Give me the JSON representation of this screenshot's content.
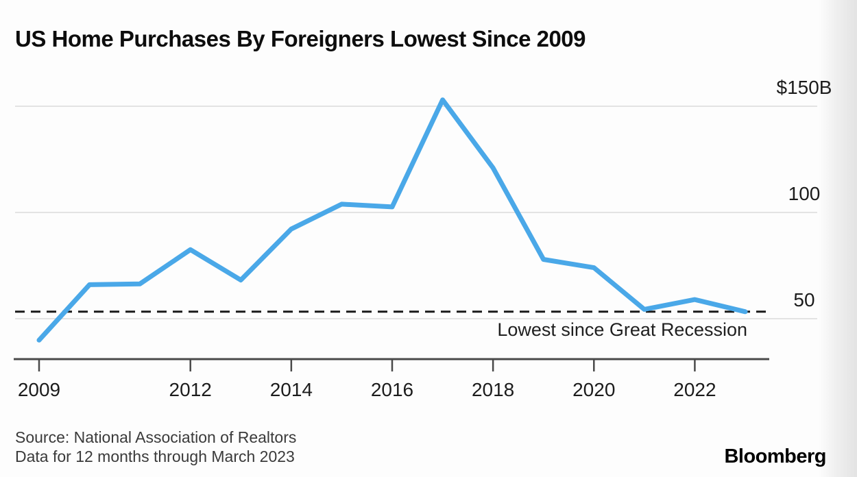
{
  "header": {
    "title": "US Home Purchases By Foreigners Lowest Since 2009"
  },
  "chart_data": {
    "type": "line",
    "title": "US Home Purchases By Foreigners Lowest Since 2009",
    "series_name": "US home purchases by foreign buyers, 12 months through March ($B)",
    "x": [
      2009,
      2010,
      2011,
      2012,
      2013,
      2014,
      2015,
      2016,
      2017,
      2018,
      2019,
      2020,
      2021,
      2022,
      2023
    ],
    "values": [
      39.9,
      66.0,
      66.4,
      82.5,
      68.2,
      92.2,
      103.9,
      102.6,
      153.0,
      121.0,
      77.9,
      74.0,
      54.4,
      59.0,
      53.3
    ],
    "x_ticks": [
      2009,
      2012,
      2014,
      2016,
      2018,
      2020,
      2022
    ],
    "y_ticks": [
      {
        "value": 150,
        "label": "$150B"
      },
      {
        "value": 100,
        "label": "100"
      },
      {
        "value": 50,
        "label": "50"
      }
    ],
    "ylim": [
      31,
      167
    ],
    "xlim": [
      2008.5,
      2023.5
    ],
    "grid": true,
    "legend": false,
    "reference_line": {
      "value": 53.3,
      "style": "dashed",
      "label": "Lowest since Great Recession"
    },
    "colors": {
      "line": "#4AA8E8",
      "grid": "#e3e3e3",
      "axis": "#4a4a4a",
      "reference": "#1a1a1a"
    }
  },
  "footer": {
    "source_line1": "Source: National Association of Realtors",
    "source_line2": "Data for 12 months through March 2023",
    "brand": "Bloomberg"
  }
}
